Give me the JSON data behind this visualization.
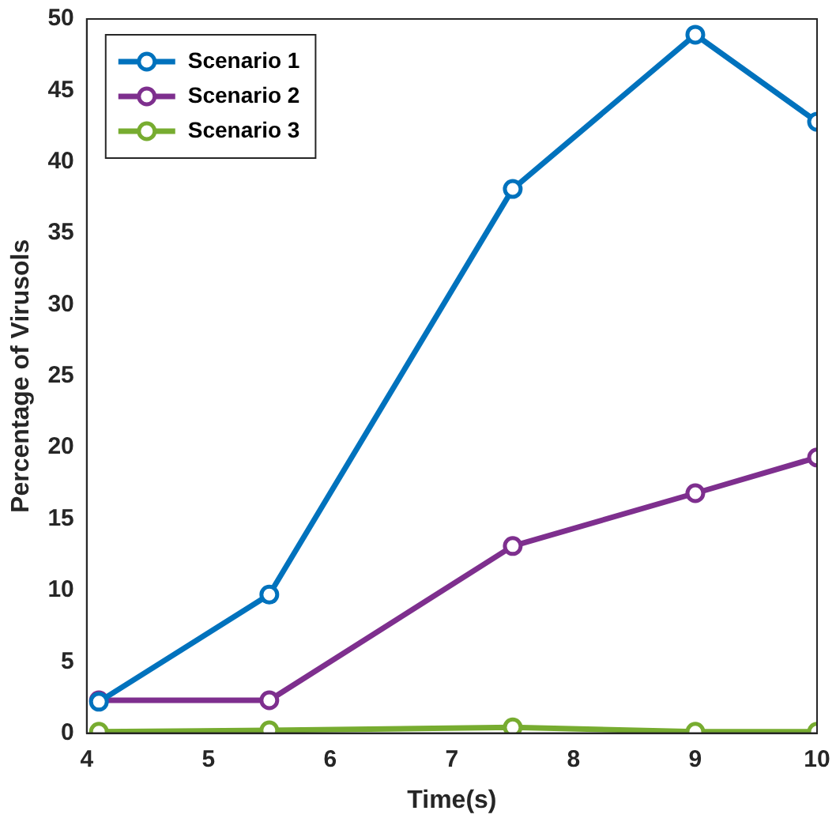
{
  "chart_data": {
    "type": "line",
    "xlabel": "Time(s)",
    "ylabel": "Percentage of Virusols",
    "x": [
      4.1,
      5.5,
      7.5,
      9,
      10
    ],
    "series": [
      {
        "name": "Scenario 1",
        "color": "#0072bd",
        "values": [
          2.2,
          9.7,
          38.1,
          48.9,
          42.8
        ]
      },
      {
        "name": "Scenario 2",
        "color": "#7e2f8e",
        "values": [
          2.3,
          2.3,
          13.1,
          16.8,
          19.3
        ]
      },
      {
        "name": "Scenario 3",
        "color": "#77ac30",
        "values": [
          0.1,
          0.2,
          0.4,
          0.1,
          0.1
        ]
      }
    ],
    "xlim": [
      4,
      10
    ],
    "xticks": [
      4,
      5,
      6,
      7,
      8,
      9,
      10
    ],
    "ylim": [
      0,
      50
    ],
    "yticks": [
      0,
      5,
      10,
      15,
      20,
      25,
      30,
      35,
      40,
      45,
      50
    ],
    "grid": false,
    "legend": "top left",
    "marker": "circle",
    "line_style": "solid"
  }
}
